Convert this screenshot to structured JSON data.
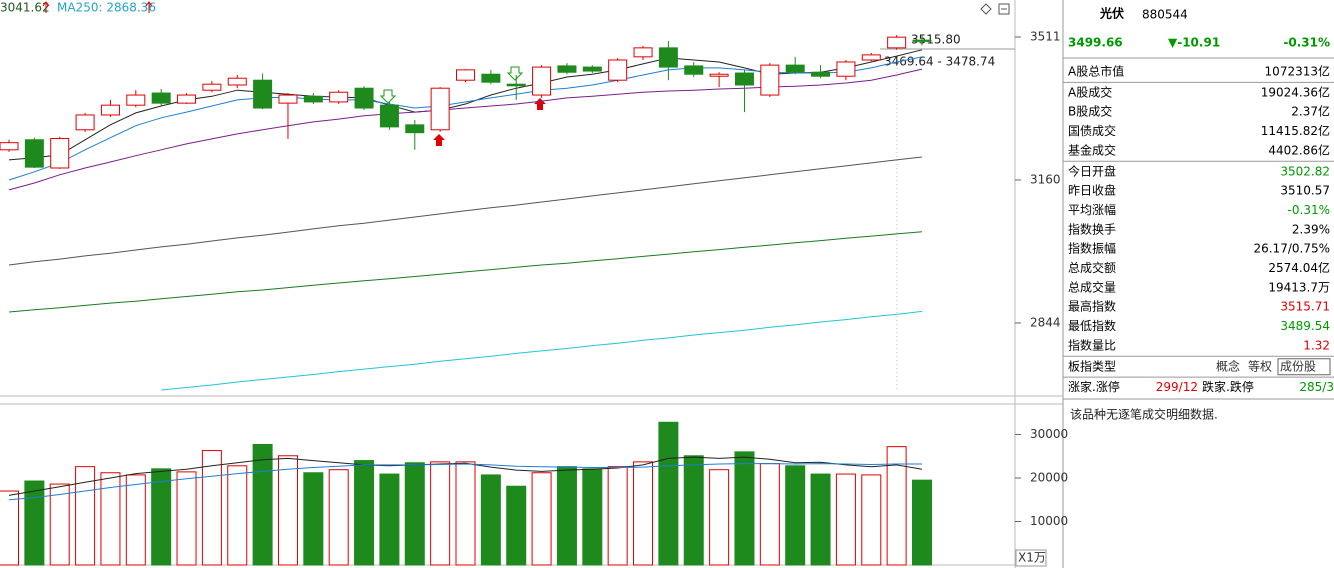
{
  "chart_data": [
    {
      "type": "candlestick",
      "header": [
        "3041.62",
        "MA250: 2868.36"
      ],
      "annotations": [
        "3515.80",
        "3469.64 - 3478.74"
      ],
      "categories": [
        null,
        null,
        null,
        null,
        null,
        null,
        null,
        null,
        null,
        null,
        null,
        null,
        null,
        null,
        null,
        null,
        null,
        null,
        null,
        null,
        null,
        null,
        null,
        null,
        null,
        null,
        null,
        null,
        null,
        null,
        null,
        null,
        null,
        null,
        null,
        null,
        null
      ],
      "open": [
        3231,
        3255,
        3188,
        3279,
        3315,
        3339,
        3369,
        3344,
        3376,
        3389,
        3401,
        3344,
        3361,
        3347,
        3381,
        3339,
        3291,
        3279,
        3401,
        3416,
        3391,
        3364,
        3437,
        3434,
        3401,
        3460,
        3483,
        3437,
        3411,
        3419,
        3364,
        3439,
        3421,
        3411,
        3452,
        3483,
        3502.82
      ],
      "high": [
        3255,
        3260,
        3262,
        3320,
        3352,
        3376,
        3379,
        3369,
        3399,
        3414,
        3418,
        3369,
        3369,
        3376,
        3386,
        3347,
        3303,
        3384,
        3429,
        3427,
        3414,
        3439,
        3444,
        3439,
        3457,
        3488,
        3501,
        3447,
        3421,
        3427,
        3444,
        3460,
        3439,
        3452,
        3470,
        3515.8,
        3515.71
      ],
      "low": [
        3226,
        3188,
        3186,
        3274,
        3310,
        3334,
        3337,
        3342,
        3371,
        3381,
        3329,
        3257,
        3342,
        3342,
        3327,
        3279,
        3231,
        3274,
        3396,
        3391,
        3352,
        3357,
        3416,
        3419,
        3396,
        3452,
        3401,
        3409,
        3384,
        3322,
        3359,
        3416,
        3406,
        3401,
        3449,
        3478,
        3489.54
      ],
      "close": [
        3248,
        3190,
        3258,
        3315,
        3339,
        3364,
        3344,
        3364,
        3391,
        3406,
        3332,
        3364,
        3347,
        3371,
        3332,
        3286,
        3272,
        3381,
        3427,
        3396,
        3387,
        3434,
        3421,
        3424,
        3452,
        3483,
        3434,
        3416,
        3416,
        3389,
        3439,
        3421,
        3411,
        3447,
        3465,
        3510.57,
        3499.66
      ],
      "up_color": "#e00000",
      "down_color": "#1e8a1e",
      "series": [
        {
          "color": "#222222",
          "values": [
            3207,
            3212,
            3219,
            3255,
            3291,
            3320,
            3337,
            3352,
            3361,
            3376,
            3371,
            3366,
            3361,
            3359,
            3357,
            3339,
            3322,
            3327,
            3342,
            3364,
            3381,
            3394,
            3409,
            3416,
            3427,
            3442,
            3457,
            3452,
            3447,
            3432,
            3416,
            3419,
            3421,
            3432,
            3447,
            3462,
            3478
          ]
        },
        {
          "color": "#1e7fd6",
          "values": [
            3160,
            3179,
            3200,
            3231,
            3260,
            3289,
            3308,
            3322,
            3337,
            3352,
            3357,
            3359,
            3354,
            3352,
            3352,
            3342,
            3332,
            3337,
            3347,
            3357,
            3366,
            3376,
            3381,
            3389,
            3401,
            3414,
            3427,
            3432,
            3432,
            3427,
            3421,
            3419,
            3419,
            3421,
            3432,
            3447,
            3460
          ]
        },
        {
          "color": "#7a1f8a",
          "values": [
            3137,
            3153,
            3172,
            3188,
            3202,
            3217,
            3231,
            3245,
            3257,
            3269,
            3279,
            3289,
            3298,
            3305,
            3313,
            3318,
            3322,
            3327,
            3332,
            3337,
            3342,
            3349,
            3357,
            3361,
            3366,
            3371,
            3374,
            3376,
            3379,
            3381,
            3384,
            3386,
            3389,
            3394,
            3401,
            3414,
            3429
          ]
        },
        {
          "color": "#555555",
          "values": [
            2968,
            2975,
            2981,
            2988,
            2994,
            3001,
            3008,
            3014,
            3021,
            3028,
            3034,
            3041,
            3048,
            3055,
            3061,
            3068,
            3075,
            3082,
            3089,
            3096,
            3102,
            3109,
            3116,
            3123,
            3130,
            3137,
            3144,
            3151,
            3158,
            3165,
            3172,
            3179,
            3186,
            3193,
            3200,
            3207,
            3214
          ]
        },
        {
          "color": "#1e7a1e",
          "values": [
            2867,
            2872,
            2876,
            2881,
            2886,
            2890,
            2895,
            2900,
            2905,
            2910,
            2914,
            2919,
            2924,
            2929,
            2934,
            2938,
            2943,
            2948,
            2953,
            2958,
            2963,
            2968,
            2972,
            2977,
            2982,
            2987,
            2992,
            2997,
            3002,
            3007,
            3012,
            3017,
            3022,
            3027,
            3032,
            3037,
            3041.62
          ]
        },
        {
          "color": "#22c5d6",
          "values": [
            null,
            null,
            null,
            null,
            null,
            null,
            2707,
            2712,
            2717,
            2723,
            2728,
            2733,
            2738,
            2744,
            2749,
            2754,
            2759,
            2765,
            2770,
            2775,
            2781,
            2786,
            2791,
            2797,
            2802,
            2808,
            2813,
            2819,
            2824,
            2829,
            2835,
            2840,
            2846,
            2851,
            2857,
            2862,
            2868.36
          ]
        }
      ],
      "ylim": [
        2701,
        3608
      ],
      "yticks": [
        3511,
        3160,
        2844
      ],
      "log_scale": true
    },
    {
      "type": "bar",
      "categories": [
        null,
        null,
        null,
        null,
        null,
        null,
        null,
        null,
        null,
        null,
        null,
        null,
        null,
        null,
        null,
        null,
        null,
        null,
        null,
        null,
        null,
        null,
        null,
        null,
        null,
        null,
        null,
        null,
        null,
        null,
        null,
        null,
        null,
        null,
        null,
        null,
        null
      ],
      "values": [
        17000,
        19300,
        18600,
        22600,
        21200,
        20700,
        22100,
        21400,
        26300,
        22800,
        27700,
        25100,
        21200,
        21900,
        24000,
        20900,
        23500,
        23700,
        23700,
        20700,
        18100,
        21200,
        22600,
        22100,
        22600,
        23700,
        32800,
        25100,
        21900,
        26000,
        23300,
        22800,
        20900,
        20900,
        20700,
        27200,
        19500
      ],
      "up_color": "#e00000",
      "down_color": "#1e8a1e",
      "series": [
        {
          "color": "#222222",
          "values": [
            16000,
            17000,
            18000,
            19000,
            20000,
            21000,
            21500,
            22000,
            22800,
            23500,
            24200,
            24500,
            24000,
            23500,
            23000,
            22800,
            23000,
            23200,
            23400,
            22500,
            21800,
            21500,
            21800,
            22000,
            22300,
            23000,
            24500,
            24800,
            24500,
            24800,
            24300,
            23500,
            23600,
            23000,
            22600,
            23000,
            22000
          ]
        },
        {
          "color": "#1e7fd6",
          "values": [
            15000,
            15500,
            16200,
            17000,
            17800,
            18500,
            19200,
            19800,
            20400,
            21000,
            21500,
            22000,
            22400,
            22700,
            23000,
            23000,
            23000,
            23100,
            23200,
            23000,
            22700,
            22600,
            22500,
            22400,
            22400,
            22500,
            22800,
            23000,
            23200,
            23300,
            23300,
            23200,
            23300,
            23200,
            23100,
            23200,
            23200
          ]
        }
      ],
      "unit_label": "X1万",
      "ylim": [
        0,
        37000
      ],
      "yticks": [
        10000,
        20000,
        30000
      ]
    }
  ],
  "quote": {
    "name": "光伏",
    "code": "880544",
    "price": "3499.66",
    "change": "▼-10.91",
    "change_pct": "-0.31%",
    "color": "#009900",
    "groups": [
      [
        {
          "label": "A股总市值",
          "value": "1072313亿",
          "color": "#000000"
        }
      ],
      [
        {
          "label": "A股成交",
          "value": "19024.36亿",
          "color": "#000000"
        },
        {
          "label": "B股成交",
          "value": "2.37亿",
          "color": "#000000"
        },
        {
          "label": "国债成交",
          "value": "11415.82亿",
          "color": "#000000"
        },
        {
          "label": "基金成交",
          "value": "4402.86亿",
          "color": "#000000"
        }
      ],
      [
        {
          "label": "今日开盘",
          "value": "3502.82",
          "color": "#009900"
        },
        {
          "label": "昨日收盘",
          "value": "3510.57",
          "color": "#000000"
        },
        {
          "label": "平均涨幅",
          "value": "-0.31%",
          "color": "#009900"
        },
        {
          "label": "指数换手",
          "value": "2.39%",
          "color": "#000000"
        },
        {
          "label": "指数振幅",
          "value": "26.17/0.75%",
          "color": "#000000"
        },
        {
          "label": "总成交额",
          "value": "2574.04亿",
          "color": "#000000"
        },
        {
          "label": "总成交量",
          "value": "19413.7万",
          "color": "#000000"
        },
        {
          "label": "最高指数",
          "value": "3515.71",
          "color": "#e00000"
        },
        {
          "label": "最低指数",
          "value": "3489.54",
          "color": "#009900"
        },
        {
          "label": "指数量比",
          "value": "1.32",
          "color": "#e00000"
        }
      ]
    ],
    "index_type": {
      "label": "板指类型",
      "tags": [
        "概念",
        "等权",
        "成份股"
      ]
    },
    "breadth": [
      {
        "label": "涨家.涨停",
        "value": "299/12",
        "color": "#e00000"
      },
      {
        "label": "跌家.跌停",
        "value": "285/3",
        "color": "#009900"
      }
    ],
    "note": "该品种无逐笔成交明细数据."
  }
}
